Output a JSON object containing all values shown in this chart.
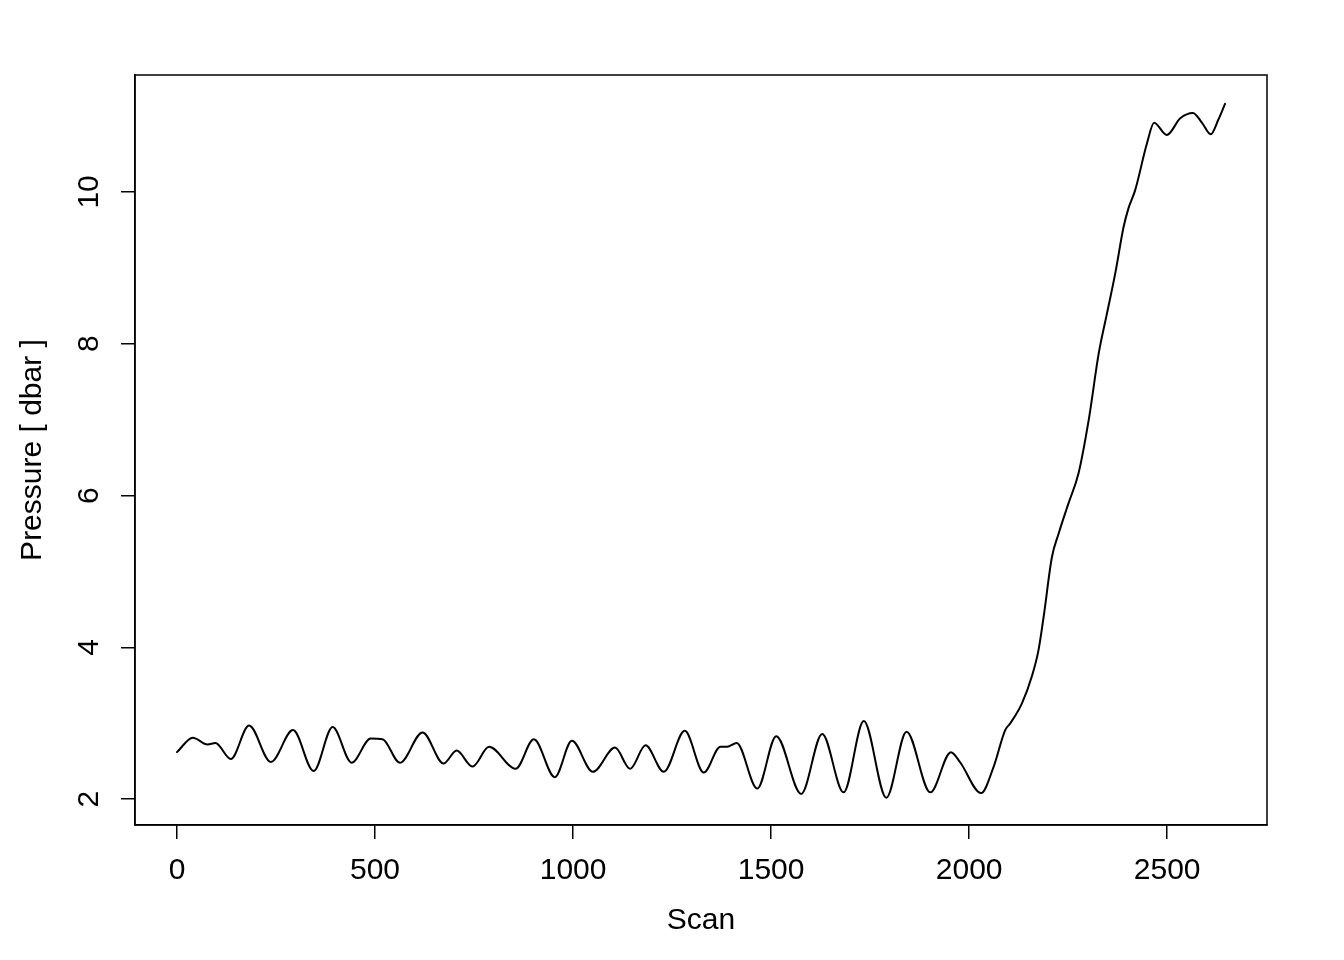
{
  "chart_data": {
    "type": "line",
    "xlabel": "Scan",
    "ylabel": "Pressure [ dbar ]",
    "x": [
      0,
      40,
      77,
      97,
      136,
      182,
      237,
      293,
      345,
      393,
      441,
      489,
      519,
      563,
      620,
      673,
      706,
      746,
      788,
      855,
      901,
      954,
      997,
      1050,
      1106,
      1144,
      1183,
      1229,
      1282,
      1330,
      1372,
      1389,
      1413,
      1465,
      1513,
      1576,
      1629,
      1683,
      1734,
      1791,
      1842,
      1902,
      1954,
      1978,
      2030,
      2062,
      2091,
      2104,
      2133,
      2159,
      2175,
      2188,
      2209,
      2226,
      2251,
      2276,
      2302,
      2327,
      2348,
      2369,
      2390,
      2402,
      2419,
      2449,
      2467,
      2499,
      2533,
      2565,
      2588,
      2610,
      2629,
      2646
    ],
    "series": [
      {
        "color": "#000000",
        "values": [
          2.62,
          2.81,
          2.72,
          2.74,
          2.53,
          2.97,
          2.49,
          2.91,
          2.37,
          2.95,
          2.48,
          2.8,
          2.79,
          2.48,
          2.88,
          2.47,
          2.64,
          2.43,
          2.69,
          2.4,
          2.79,
          2.29,
          2.77,
          2.36,
          2.68,
          2.4,
          2.71,
          2.36,
          2.9,
          2.35,
          2.69,
          2.69,
          2.74,
          2.14,
          2.83,
          2.07,
          2.86,
          2.09,
          3.03,
          2.02,
          2.89,
          2.09,
          2.62,
          2.48,
          2.08,
          2.43,
          2.91,
          3.0,
          3.26,
          3.63,
          3.96,
          4.4,
          5.19,
          5.5,
          5.9,
          6.29,
          7.0,
          7.87,
          8.4,
          8.93,
          9.54,
          9.78,
          10.02,
          10.64,
          10.91,
          10.75,
          10.97,
          11.04,
          10.91,
          10.76,
          10.95,
          11.16
        ]
      }
    ],
    "xlim": [
      -106,
      2752
    ],
    "xticks": [
      0,
      500,
      1000,
      1500,
      2000,
      2500
    ],
    "ylim": [
      1.66,
      11.54
    ],
    "yticks": [
      2,
      4,
      6,
      8,
      10
    ],
    "marker": "none",
    "line_style": "solid"
  }
}
